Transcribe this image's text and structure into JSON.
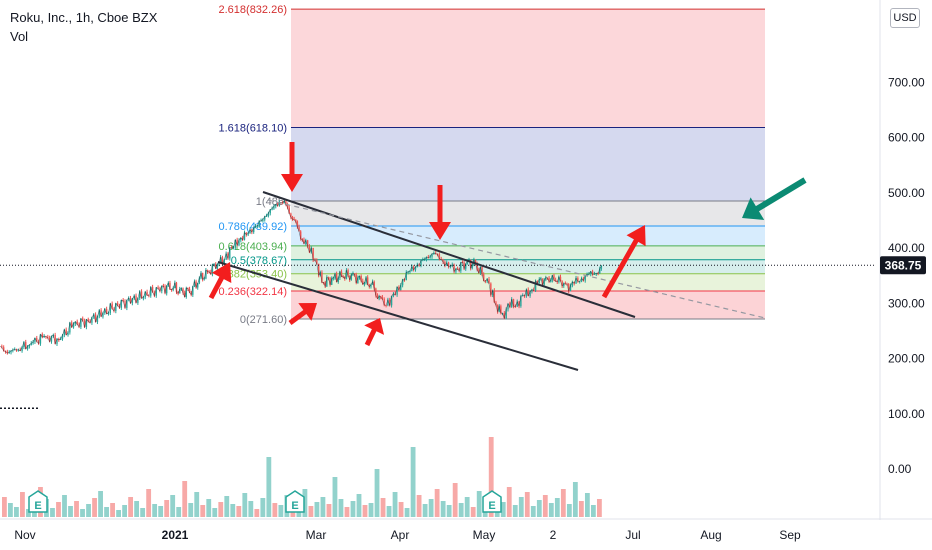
{
  "header": {
    "symbol_line": "Roku, Inc., 1h, Cboe BZX",
    "volume_label": "Vol"
  },
  "currency_button": "USD",
  "chart_data": {
    "type": "candlestick",
    "symbol": "Roku, Inc.",
    "interval": "1h",
    "exchange": "Cboe BZX",
    "currency": "USD",
    "last_price": "368.75",
    "y_ticks": [
      "700.00",
      "600.00",
      "500.00",
      "400.00",
      "300.00",
      "200.00",
      "100.00",
      "0.00"
    ],
    "x_ticks": [
      "Nov",
      "2021",
      "Mar",
      "Apr",
      "May",
      "2",
      "Jul",
      "Aug",
      "Sep"
    ],
    "earnings_markers": 3,
    "earnings_marker_label": "E",
    "price_path": [
      [
        0,
        218
      ],
      [
        0.3,
        214
      ],
      [
        0.6,
        212
      ],
      [
        1.2,
        228
      ],
      [
        1.8,
        238
      ],
      [
        2.4,
        235
      ],
      [
        3,
        262
      ],
      [
        3.6,
        268
      ],
      [
        4.2,
        282
      ],
      [
        4.8,
        297
      ],
      [
        5.4,
        306
      ],
      [
        6,
        318
      ],
      [
        6.6,
        326
      ],
      [
        7,
        332
      ],
      [
        7.4,
        318
      ],
      [
        7.8,
        325
      ],
      [
        8.2,
        345
      ],
      [
        8.6,
        362
      ],
      [
        9,
        375
      ],
      [
        9.3,
        388
      ],
      [
        9.6,
        410
      ],
      [
        9.9,
        418
      ],
      [
        10.2,
        432
      ],
      [
        10.5,
        440
      ],
      [
        10.8,
        458
      ],
      [
        11.1,
        470
      ],
      [
        11.4,
        484
      ],
      [
        11.6,
        485
      ],
      [
        11.8,
        462
      ],
      [
        12,
        452
      ],
      [
        12.2,
        428
      ],
      [
        12.4,
        410
      ],
      [
        12.7,
        398
      ],
      [
        13,
        352
      ],
      [
        13.2,
        338
      ],
      [
        13.6,
        344
      ],
      [
        14,
        352
      ],
      [
        14.4,
        348
      ],
      [
        14.8,
        342
      ],
      [
        15.2,
        330
      ],
      [
        15.4,
        318
      ],
      [
        15.6,
        298
      ],
      [
        15.9,
        305
      ],
      [
        16.2,
        322
      ],
      [
        16.5,
        348
      ],
      [
        16.8,
        362
      ],
      [
        17.1,
        372
      ],
      [
        17.4,
        382
      ],
      [
        17.7,
        392
      ],
      [
        18,
        378
      ],
      [
        18.3,
        368
      ],
      [
        18.6,
        360
      ],
      [
        19,
        375
      ],
      [
        19.4,
        368
      ],
      [
        19.8,
        345
      ],
      [
        20.1,
        318
      ],
      [
        20.3,
        290
      ],
      [
        20.5,
        278
      ],
      [
        20.8,
        296
      ],
      [
        21.1,
        302
      ],
      [
        21.4,
        312
      ],
      [
        21.7,
        328
      ],
      [
        22,
        338
      ],
      [
        22.4,
        346
      ],
      [
        22.8,
        340
      ],
      [
        23.2,
        330
      ],
      [
        23.5,
        338
      ],
      [
        23.8,
        348
      ],
      [
        24.1,
        352
      ],
      [
        24.4,
        358
      ],
      [
        24.6,
        369
      ]
    ],
    "volume_heights": [
      20,
      14,
      10,
      25,
      8,
      12,
      30,
      18,
      9,
      15,
      22,
      11,
      16,
      8,
      13,
      19,
      26,
      10,
      14,
      7,
      12,
      20,
      16,
      9,
      28,
      13,
      11,
      17,
      22,
      10,
      36,
      14,
      25,
      12,
      18,
      9,
      15,
      21,
      13,
      11,
      24,
      16,
      8,
      19,
      60,
      14,
      12,
      22,
      9,
      17,
      28,
      11,
      15,
      20,
      13,
      40,
      18,
      10,
      16,
      23,
      12,
      14,
      48,
      19,
      11,
      25,
      15,
      9,
      70,
      22,
      13,
      18,
      28,
      16,
      12,
      34,
      14,
      20,
      10,
      26,
      18,
      80,
      22,
      15,
      30,
      12,
      20,
      25,
      11,
      17,
      22,
      14,
      19,
      28,
      13,
      35,
      16,
      24,
      12,
      18
    ],
    "dashed_level": 110
  },
  "fibonacci": {
    "levels": [
      {
        "ratio": "2.618",
        "price": "832.26",
        "label": "2.618(832.26)",
        "color": "#d32f2f"
      },
      {
        "ratio": "1.618",
        "price": "618.10",
        "label": "1.618(618.10)",
        "color": "#1a237e"
      },
      {
        "ratio": "1",
        "price": "485.",
        "label": "1(485.",
        "color": "#787b86"
      },
      {
        "ratio": "0.786",
        "price": "439.92",
        "label": "0.786(439.92)",
        "color": "#2196f3"
      },
      {
        "ratio": "0.618",
        "price": "403.94",
        "label": "0.618(403.94)",
        "color": "#4caf50"
      },
      {
        "ratio": "0.5",
        "price": "378.67",
        "label": "0.5(378.67)",
        "color": "#009688"
      },
      {
        "ratio": "0.382",
        "price": "353.40",
        "label": "0.382(353.40)",
        "color": "#8bc34a"
      },
      {
        "ratio": "0.236",
        "price": "322.14",
        "label": "0.236(322.14)",
        "color": "#f23645"
      },
      {
        "ratio": "0",
        "price": "271.60",
        "label": "0(271.60)",
        "color": "#787b86"
      }
    ],
    "bands": [
      {
        "from": "832.26",
        "to": "618.10",
        "fill": "rgba(242,54,69,0.20)"
      },
      {
        "from": "618.10",
        "to": "485",
        "fill": "rgba(63,81,181,0.22)"
      },
      {
        "from": "485",
        "to": "439.92",
        "fill": "rgba(120,123,134,0.18)"
      },
      {
        "from": "439.92",
        "to": "403.94",
        "fill": "rgba(33,150,243,0.18)"
      },
      {
        "from": "403.94",
        "to": "378.67",
        "fill": "rgba(76,175,80,0.18)"
      },
      {
        "from": "378.67",
        "to": "353.40",
        "fill": "rgba(0,150,136,0.16)"
      },
      {
        "from": "353.40",
        "to": "322.14",
        "fill": "rgba(139,195,74,0.20)"
      },
      {
        "from": "322.14",
        "to": "271.60",
        "fill": "rgba(242,54,69,0.22)"
      }
    ]
  },
  "colors": {
    "up": "#26a69a",
    "down": "#ef5350",
    "volume_up": "rgba(38,166,154,0.5)",
    "volume_down": "rgba(239,83,80,0.5)",
    "arrow_red": "#f21e1e",
    "arrow_green": "#0b8a73",
    "price_tag_bg": "#131722",
    "price_tag_text": "#ffffff",
    "axis_text": "#131722",
    "trendline": "#2a2e39"
  }
}
